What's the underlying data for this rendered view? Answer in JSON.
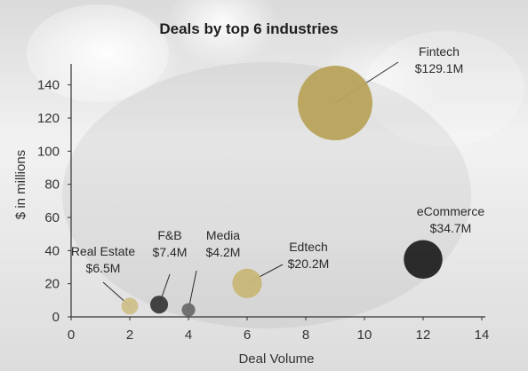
{
  "chart_data": {
    "type": "scatter",
    "title": "Deals by top 6 industries",
    "xlabel": "Deal Volume",
    "ylabel": "$ in millions",
    "xlim": [
      0,
      14
    ],
    "ylim": [
      0,
      150
    ],
    "x_ticks": [
      "0",
      "2",
      "4",
      "6",
      "8",
      "10",
      "12",
      "14"
    ],
    "y_ticks": [
      "0",
      "20",
      "40",
      "60",
      "80",
      "100",
      "120",
      "140"
    ],
    "grid": false,
    "points": [
      {
        "name": "Fintech",
        "label": "$129.1M",
        "x": 9,
        "y": 129.1,
        "color": "#b8a35a"
      },
      {
        "name": "eCommerce",
        "label": "$34.7M",
        "x": 12,
        "y": 34.7,
        "color": "#222222"
      },
      {
        "name": "Edtech",
        "label": "$20.2M",
        "x": 6,
        "y": 20.2,
        "color": "#c8b778"
      },
      {
        "name": "Real Estate",
        "label": "$6.5M",
        "x": 2,
        "y": 6.5,
        "color": "#cfc08a"
      },
      {
        "name": "F&B",
        "label": "$7.4M",
        "x": 3,
        "y": 7.4,
        "color": "#3a3a3a"
      },
      {
        "name": "Media",
        "label": "$4.2M",
        "x": 4,
        "y": 4.2,
        "color": "#6a6a6a"
      }
    ]
  }
}
